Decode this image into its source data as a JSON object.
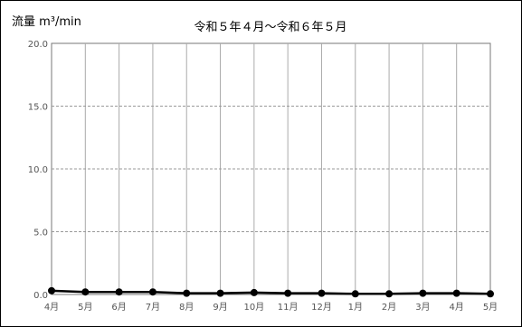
{
  "chart_data": {
    "type": "line",
    "title": "令和５年４月～令和６年５月",
    "ylabel": "流量 m³/min",
    "xlabel": "",
    "categories": [
      "4月",
      "5月",
      "6月",
      "7月",
      "8月",
      "9月",
      "10月",
      "11月",
      "12月",
      "1月",
      "2月",
      "3月",
      "4月",
      "5月"
    ],
    "values": [
      0.3,
      0.2,
      0.2,
      0.2,
      0.1,
      0.1,
      0.15,
      0.1,
      0.1,
      0.05,
      0.05,
      0.1,
      0.1,
      0.05
    ],
    "ylim": [
      0,
      20
    ],
    "yticks": [
      "0.0",
      "5.0",
      "10.0",
      "15.0",
      "20.0"
    ],
    "grid": true,
    "colors": {
      "line": "#000000",
      "grid_major": "#999999",
      "grid_vertical": "#aaaaaa",
      "axis": "#777777"
    }
  }
}
